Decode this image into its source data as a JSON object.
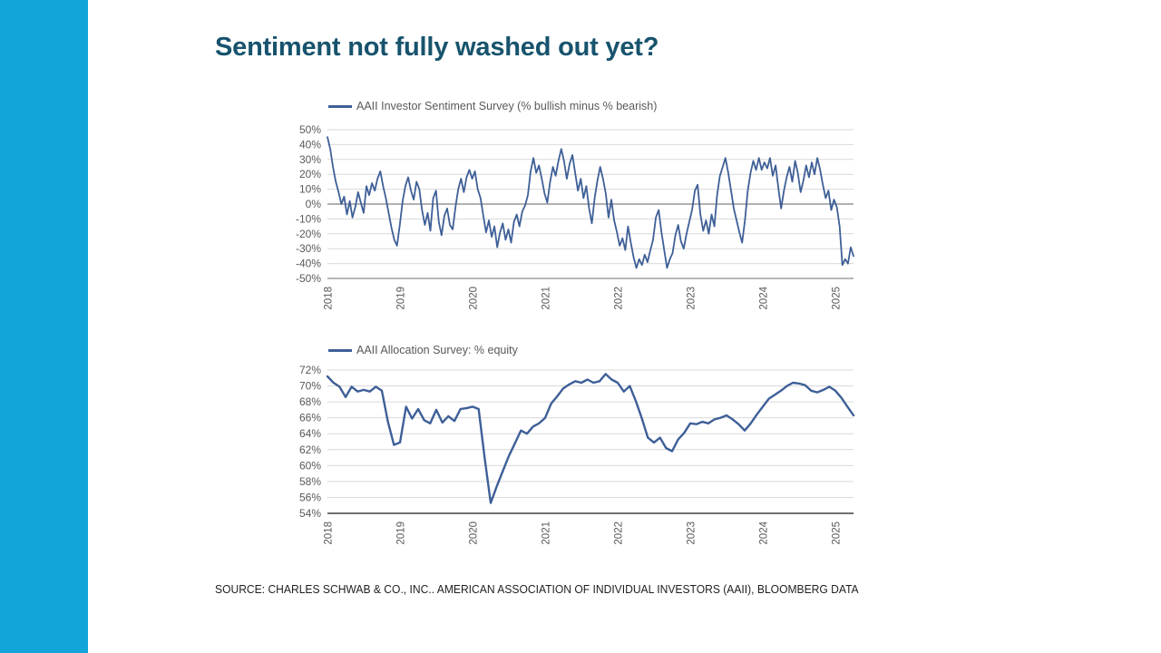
{
  "slide": {
    "title": "Sentiment not fully washed out yet?",
    "source": "SOURCE: CHARLES SCHWAB & CO., INC.. AMERICAN ASSOCIATION OF INDIVIDUAL INVESTORS (AAII), BLOOMBERG DATA",
    "colors": {
      "accent_bar": "#12a5da",
      "title": "#17536d",
      "line": "#3e5f97",
      "grid": "#d9d9d9",
      "zero_line": "#808080",
      "axis_medium": "#8c8c8c",
      "axis_dark": "#404040",
      "tick_text": "#595959"
    }
  },
  "chart_data": [
    {
      "type": "line",
      "legend": "AAII Investor Sentiment Survey (% bullish minus % bearish)",
      "title": "",
      "xlabel": "",
      "ylabel": "",
      "x_start": 2018,
      "x_end": 2025.25,
      "x_ticks": [
        2018,
        2019,
        2020,
        2021,
        2022,
        2023,
        2024,
        2025
      ],
      "ylim": [
        -50,
        50
      ],
      "y_tick_step": 10,
      "y_suffix": "%",
      "zero_line": true,
      "bottom_axis": "medium",
      "grid": true,
      "legend_position": "top-left",
      "values": [
        45,
        37,
        25,
        15,
        8,
        0,
        5,
        -7,
        2,
        -9,
        -2,
        8,
        1,
        -6,
        12,
        6,
        14,
        9,
        17,
        22,
        12,
        4,
        -6,
        -16,
        -24,
        -28,
        -14,
        2,
        12,
        18,
        9,
        3,
        15,
        10,
        -4,
        -14,
        -6,
        -18,
        4,
        9,
        -12,
        -21,
        -8,
        -3,
        -14,
        -17,
        -2,
        10,
        17,
        8,
        18,
        23,
        17,
        22,
        10,
        4,
        -8,
        -19,
        -11,
        -22,
        -15,
        -29,
        -19,
        -13,
        -24,
        -17,
        -26,
        -12,
        -7,
        -15,
        -5,
        -1,
        6,
        22,
        31,
        21,
        26,
        17,
        7,
        1,
        15,
        25,
        19,
        29,
        37,
        29,
        17,
        27,
        33,
        21,
        9,
        17,
        4,
        12,
        -3,
        -13,
        4,
        16,
        25,
        17,
        7,
        -9,
        3,
        -11,
        -19,
        -28,
        -23,
        -31,
        -15,
        -26,
        -36,
        -43,
        -37,
        -41,
        -34,
        -39,
        -31,
        -24,
        -9,
        -4,
        -19,
        -31,
        -43,
        -37,
        -33,
        -21,
        -14,
        -25,
        -30,
        -20,
        -12,
        -4,
        9,
        13,
        -7,
        -18,
        -11,
        -20,
        -7,
        -15,
        6,
        19,
        25,
        31,
        21,
        9,
        -3,
        -11,
        -19,
        -26,
        -11,
        9,
        21,
        29,
        23,
        31,
        23,
        28,
        24,
        31,
        19,
        26,
        11,
        -3,
        9,
        18,
        25,
        15,
        29,
        21,
        8,
        16,
        26,
        18,
        28,
        20,
        31,
        23,
        13,
        4,
        9,
        -4,
        3,
        -2,
        -15,
        -41,
        -37,
        -40,
        -29,
        -35
      ]
    },
    {
      "type": "line",
      "legend": "AAII Allocation Survey: % equity",
      "title": "",
      "xlabel": "",
      "ylabel": "",
      "x_start": 2018,
      "x_end": 2025.25,
      "x_ticks": [
        2018,
        2019,
        2020,
        2021,
        2022,
        2023,
        2024,
        2025
      ],
      "ylim": [
        54,
        72
      ],
      "y_tick_step": 2,
      "y_suffix": "%",
      "zero_line": false,
      "bottom_axis": "dark",
      "grid": true,
      "legend_position": "top-left",
      "values": [
        71.2,
        70.4,
        69.9,
        68.6,
        69.9,
        69.3,
        69.5,
        69.3,
        69.9,
        69.4,
        65.5,
        62.6,
        62.9,
        67.4,
        65.9,
        67.1,
        65.7,
        65.3,
        67.0,
        65.4,
        66.2,
        65.6,
        67.1,
        67.2,
        67.4,
        67.1,
        61.0,
        55.3,
        57.4,
        59.3,
        61.2,
        62.8,
        64.4,
        64.0,
        64.9,
        65.3,
        66.0,
        67.8,
        68.7,
        69.7,
        70.2,
        70.6,
        70.4,
        70.8,
        70.4,
        70.6,
        71.5,
        70.8,
        70.4,
        69.3,
        70.0,
        68.1,
        65.9,
        63.5,
        62.9,
        63.5,
        62.2,
        61.8,
        63.3,
        64.1,
        65.3,
        65.2,
        65.5,
        65.3,
        65.8,
        66.0,
        66.3,
        65.8,
        65.2,
        64.4,
        65.3,
        66.4,
        67.4,
        68.4,
        68.9,
        69.4,
        70.0,
        70.4,
        70.3,
        70.1,
        69.4,
        69.2,
        69.5,
        69.9,
        69.4,
        68.5,
        67.4,
        66.3
      ]
    }
  ]
}
